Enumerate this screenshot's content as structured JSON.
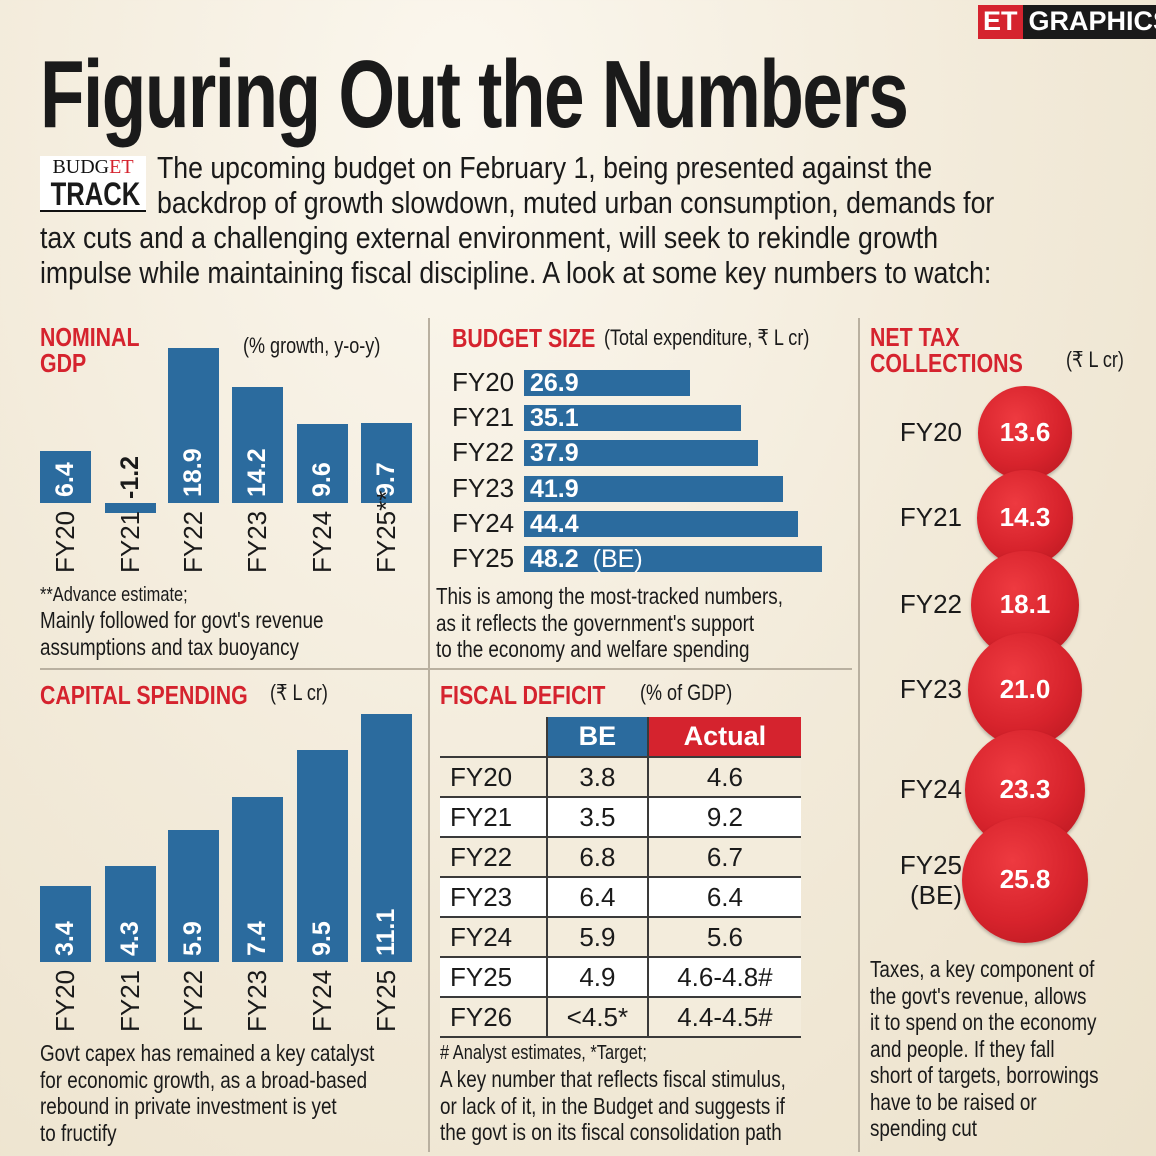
{
  "badge": {
    "et": "ET",
    "graphics": "GRAPHICS"
  },
  "title": "Figuring Out the Numbers",
  "logo": {
    "line1a": "BUDG",
    "line1b": "ET",
    "line2": "TRACK"
  },
  "intro": [
    "The upcoming budget on February 1, being presented against the",
    "backdrop of growth slowdown, muted urban consumption, demands for",
    "tax cuts and a challenging external environment, will seek to rekindle growth",
    "impulse while maintaining fiscal discipline. A look at some key numbers to watch:"
  ],
  "colors": {
    "blue": "#2b6b9e",
    "red": "#d5232e"
  },
  "chart_data": [
    {
      "type": "bar",
      "title": "NOMINAL GDP",
      "subtitle": "(% growth, y-o-y)",
      "categories": [
        "FY20",
        "FY21",
        "FY22",
        "FY23",
        "FY24",
        "FY25**"
      ],
      "values": [
        6.4,
        -1.2,
        18.9,
        14.2,
        9.6,
        9.7
      ],
      "labels": [
        "6.4",
        "-1.2",
        "18.9",
        "14.2",
        "9.6",
        "9.7"
      ],
      "footnote": "**Advance estimate;",
      "note": [
        "Mainly followed for govt's revenue",
        "assumptions and tax buoyancy"
      ]
    },
    {
      "type": "bar",
      "orientation": "horizontal",
      "title": "BUDGET SIZE",
      "subtitle": "(Total expenditure, ₹ L cr)",
      "categories": [
        "FY20",
        "FY21",
        "FY22",
        "FY23",
        "FY24",
        "FY25"
      ],
      "values": [
        26.9,
        35.1,
        37.9,
        41.9,
        44.4,
        48.2
      ],
      "labels": [
        "26.9",
        "35.1",
        "37.9",
        "41.9",
        "44.4",
        "48.2"
      ],
      "suffix": [
        "",
        "",
        "",
        "",
        "",
        "(BE)"
      ],
      "note": [
        "This is among the most-tracked numbers,",
        "as it reflects the government's support",
        "to the economy and welfare spending"
      ]
    },
    {
      "type": "bubble",
      "title": [
        "NET TAX",
        "COLLECTIONS"
      ],
      "subtitle": "(₹ L cr)",
      "categories": [
        "FY20",
        "FY21",
        "FY22",
        "FY23",
        "FY24",
        "FY25\n(BE)"
      ],
      "values": [
        13.6,
        14.3,
        18.1,
        21.0,
        23.3,
        25.8
      ],
      "labels": [
        "13.6",
        "14.3",
        "18.1",
        "21.0",
        "23.3",
        "25.8"
      ],
      "note": [
        "Taxes, a key component of",
        "the govt's revenue, allows",
        "it to spend on the economy",
        "and people. If they fall",
        "short of targets, borrowings",
        "have to be raised or",
        "spending cut"
      ]
    },
    {
      "type": "bar",
      "title": "CAPITAL SPENDING",
      "subtitle": "(₹ L cr)",
      "categories": [
        "FY20",
        "FY21",
        "FY22",
        "FY23",
        "FY24",
        "FY25"
      ],
      "values": [
        3.4,
        4.3,
        5.9,
        7.4,
        9.5,
        11.1
      ],
      "labels": [
        "3.4",
        "4.3",
        "5.9",
        "7.4",
        "9.5",
        "11.1"
      ],
      "note": [
        "Govt capex has remained a key catalyst",
        "for economic growth, as a broad-based",
        "rebound in private investment is yet",
        "to fructify"
      ]
    },
    {
      "type": "table",
      "title": "FISCAL DEFICIT",
      "subtitle": "(% of GDP)",
      "columns": [
        "",
        "BE",
        "Actual"
      ],
      "rows": [
        [
          "FY20",
          "3.8",
          "4.6"
        ],
        [
          "FY21",
          "3.5",
          "9.2"
        ],
        [
          "FY22",
          "6.8",
          "6.7"
        ],
        [
          "FY23",
          "6.4",
          "6.4"
        ],
        [
          "FY24",
          "5.9",
          "5.6"
        ],
        [
          "FY25",
          "4.9",
          "4.6-4.8#"
        ],
        [
          "FY26",
          "<4.5*",
          "4.4-4.5#"
        ]
      ],
      "footnote": "# Analyst estimates, *Target;",
      "note": [
        "A key number that reflects fiscal stimulus,",
        "or lack of it, in the Budget and suggests if",
        "the govt is on its fiscal consolidation path"
      ]
    }
  ]
}
